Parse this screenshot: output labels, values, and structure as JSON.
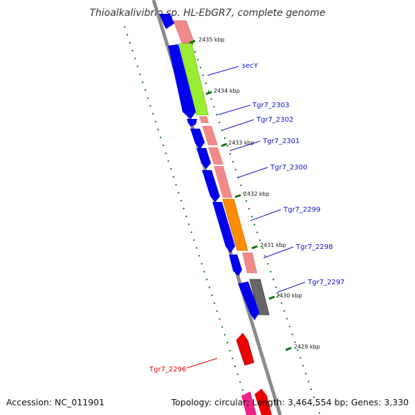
{
  "title": "Thioalkalivibrio sp. HL-EbGR7, complete genome",
  "footer": {
    "accession": "Accession: NC_011901",
    "summary": "Topology: circular; Length: 3,464,554 bp; Genes: 3,330"
  },
  "kbp_labels": [
    "2435 kbp",
    "2434 kbp",
    "2433 kbp",
    "2432 kbp",
    "2431 kbp",
    "2430 kbp",
    "2429 kbp"
  ],
  "gene_labels": [
    {
      "name": "secY",
      "color": "#1010c8"
    },
    {
      "name": "Tgr7_2303",
      "color": "#1010c8"
    },
    {
      "name": "Tgr7_2302",
      "color": "#1010c8"
    },
    {
      "name": "Tgr7_2301",
      "color": "#1010c8"
    },
    {
      "name": "Tgr7_2300",
      "color": "#1010c8"
    },
    {
      "name": "Tgr7_2299",
      "color": "#1010c8"
    },
    {
      "name": "Tgr7_2298",
      "color": "#1010c8"
    },
    {
      "name": "Tgr7_2297",
      "color": "#1010c8"
    },
    {
      "name": "Tgr7_2296",
      "color": "#e00000"
    }
  ],
  "colors": {
    "backbone": "#888888",
    "cds_forward": "#0000ee",
    "gene_pink": "#f08a8a",
    "secY_green": "#99ee33",
    "orange": "#ff8c00",
    "grey_gene": "#666666",
    "red_gene": "#ee0000",
    "tick_green": "#007700"
  }
}
